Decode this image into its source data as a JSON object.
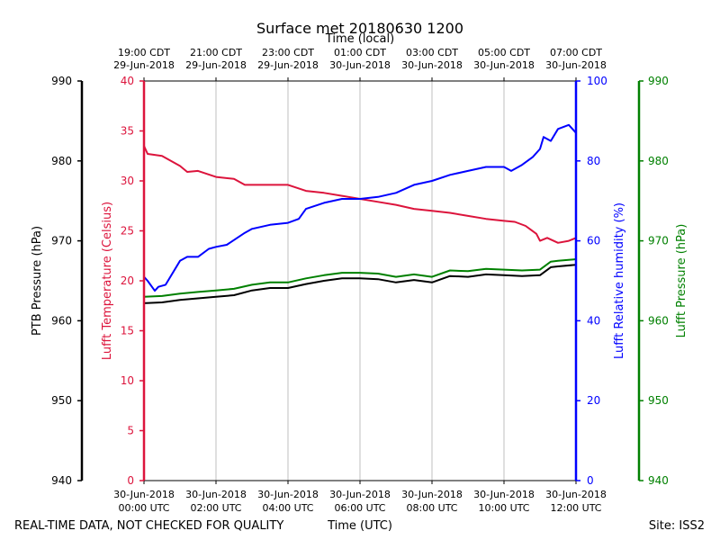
{
  "chart_data": {
    "type": "line",
    "title": "Surface met 20180630 1200",
    "top_axis_label": "Time (local)",
    "xlabel": "Time (UTC)",
    "footer_left": "REAL-TIME DATA, NOT CHECKED FOR QUALITY",
    "footer_right": "Site: ISS2",
    "x_hours_range": [
      0,
      12
    ],
    "bottom_ticks": [
      {
        "hour": 0,
        "date": "30-Jun-2018",
        "time": "00:00 UTC"
      },
      {
        "hour": 2,
        "date": "30-Jun-2018",
        "time": "02:00 UTC"
      },
      {
        "hour": 4,
        "date": "30-Jun-2018",
        "time": "04:00 UTC"
      },
      {
        "hour": 6,
        "date": "30-Jun-2018",
        "time": "06:00 UTC"
      },
      {
        "hour": 8,
        "date": "30-Jun-2018",
        "time": "08:00 UTC"
      },
      {
        "hour": 10,
        "date": "30-Jun-2018",
        "time": "10:00 UTC"
      },
      {
        "hour": 12,
        "date": "30-Jun-2018",
        "time": "12:00 UTC"
      }
    ],
    "top_ticks": [
      {
        "hour": 0,
        "time": "19:00 CDT",
        "date": "29-Jun-2018"
      },
      {
        "hour": 2,
        "time": "21:00 CDT",
        "date": "29-Jun-2018"
      },
      {
        "hour": 4,
        "time": "23:00 CDT",
        "date": "29-Jun-2018"
      },
      {
        "hour": 6,
        "time": "01:00 CDT",
        "date": "30-Jun-2018"
      },
      {
        "hour": 8,
        "time": "03:00 CDT",
        "date": "30-Jun-2018"
      },
      {
        "hour": 10,
        "time": "05:00 CDT",
        "date": "30-Jun-2018"
      },
      {
        "hour": 12,
        "time": "07:00 CDT",
        "date": "30-Jun-2018"
      }
    ],
    "axes": {
      "ptb_pressure": {
        "label": "PTB Pressure (hPa)",
        "range": [
          940,
          990
        ],
        "ticks": [
          940,
          950,
          960,
          970,
          980,
          990
        ],
        "color": "#000000"
      },
      "temperature": {
        "label": "Lufft Temperature (Celsius)",
        "range": [
          0,
          40
        ],
        "ticks": [
          0,
          5,
          10,
          15,
          20,
          25,
          30,
          35,
          40
        ],
        "color": "#dc143c"
      },
      "humidity": {
        "label": "Lufft Relative humidity (%)",
        "range": [
          0,
          100
        ],
        "ticks": [
          0,
          20,
          40,
          60,
          80,
          100
        ],
        "color": "#0000ff"
      },
      "lufft_pressure": {
        "label": "Lufft Pressure (hPa)",
        "range": [
          940,
          990
        ],
        "ticks": [
          940,
          950,
          960,
          970,
          980,
          990
        ],
        "color": "#008000"
      }
    },
    "series": [
      {
        "name": "Lufft Temperature",
        "axis": "temperature",
        "color": "#dc143c",
        "x": [
          0,
          0.1,
          0.5,
          1.0,
          1.2,
          1.5,
          2.0,
          2.5,
          2.8,
          3.5,
          4.0,
          4.5,
          5.0,
          5.5,
          6.0,
          6.5,
          7.0,
          7.5,
          8.0,
          8.5,
          9.0,
          9.5,
          10.0,
          10.3,
          10.6,
          10.9,
          11.0,
          11.2,
          11.5,
          11.8,
          12.0
        ],
        "values": [
          33.5,
          32.7,
          32.5,
          31.5,
          30.9,
          31.0,
          30.4,
          30.2,
          29.6,
          29.6,
          29.6,
          29.0,
          28.8,
          28.5,
          28.2,
          27.9,
          27.6,
          27.2,
          27.0,
          26.8,
          26.5,
          26.2,
          26.0,
          25.9,
          25.5,
          24.7,
          24.0,
          24.3,
          23.8,
          24.0,
          24.3
        ]
      },
      {
        "name": "Lufft Relative humidity",
        "axis": "humidity",
        "color": "#0000ff",
        "x": [
          0,
          0.1,
          0.3,
          0.4,
          0.6,
          1.0,
          1.2,
          1.5,
          1.8,
          2.0,
          2.3,
          2.8,
          3.0,
          3.5,
          4.0,
          4.3,
          4.5,
          5.0,
          5.5,
          6.0,
          6.5,
          7.0,
          7.5,
          8.0,
          8.5,
          9.0,
          9.5,
          10.0,
          10.2,
          10.5,
          10.8,
          11.0,
          11.1,
          11.3,
          11.5,
          11.8,
          12.0
        ],
        "values": [
          51,
          50,
          47.5,
          48.5,
          49,
          55,
          56,
          56,
          58,
          58.5,
          59,
          62,
          63,
          64,
          64.5,
          65.5,
          68,
          69.5,
          70.5,
          70.5,
          71,
          72,
          74,
          75,
          76.5,
          77.5,
          78.5,
          78.5,
          77.5,
          79,
          81,
          83,
          86,
          85,
          88,
          89,
          87
        ]
      },
      {
        "name": "PTB Pressure",
        "axis": "ptb_pressure",
        "color": "#000000",
        "x": [
          0,
          0.5,
          1.0,
          1.5,
          2.0,
          2.5,
          3.0,
          3.5,
          4.0,
          4.5,
          5.0,
          5.5,
          6.0,
          6.5,
          7.0,
          7.5,
          8.0,
          8.5,
          9.0,
          9.5,
          10.0,
          10.5,
          11.0,
          11.3,
          11.5,
          12.0
        ],
        "values": [
          962.2,
          962.3,
          962.6,
          962.8,
          963.0,
          963.2,
          963.8,
          964.1,
          964.1,
          964.6,
          965.0,
          965.3,
          965.3,
          965.2,
          964.8,
          965.1,
          964.8,
          965.6,
          965.5,
          965.8,
          965.7,
          965.6,
          965.7,
          966.7,
          966.8,
          967.0
        ]
      },
      {
        "name": "Lufft Pressure",
        "axis": "lufft_pressure",
        "color": "#008000",
        "x": [
          0,
          0.5,
          1.0,
          1.5,
          2.0,
          2.5,
          3.0,
          3.5,
          4.0,
          4.5,
          5.0,
          5.5,
          6.0,
          6.5,
          7.0,
          7.5,
          8.0,
          8.5,
          9.0,
          9.5,
          10.0,
          10.5,
          11.0,
          11.3,
          11.5,
          12.0
        ],
        "values": [
          963.0,
          963.1,
          963.4,
          963.6,
          963.8,
          964.0,
          964.5,
          964.8,
          964.8,
          965.3,
          965.7,
          966.0,
          966.0,
          965.9,
          965.5,
          965.8,
          965.5,
          966.3,
          966.2,
          966.5,
          966.4,
          966.3,
          966.4,
          967.4,
          967.5,
          967.7
        ]
      }
    ]
  }
}
